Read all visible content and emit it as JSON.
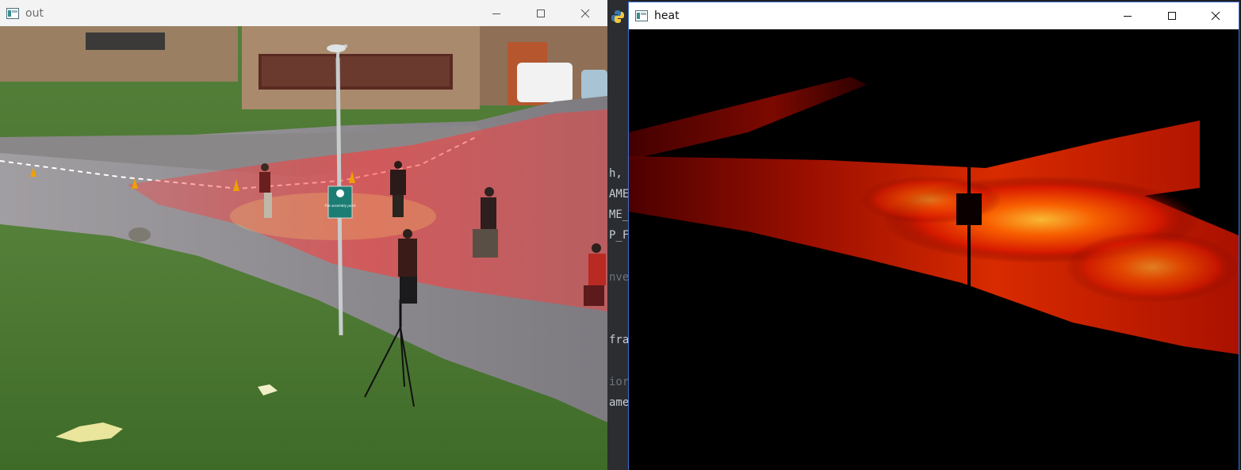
{
  "windows": {
    "out": {
      "title": "out",
      "minimize_icon": "minimize-icon",
      "maximize_icon": "maximize-icon",
      "close_icon": "close-icon"
    },
    "heat": {
      "title": "heat",
      "minimize_icon": "minimize-icon",
      "maximize_icon": "maximize-icon",
      "close_icon": "close-icon"
    }
  },
  "background_editor": {
    "visible_code_fragments": [
      "h,",
      "AME",
      "ME_",
      "P_F",
      "nve",
      "fra",
      "ior",
      "ame"
    ]
  },
  "sign": {
    "text": "Fire assembly point"
  },
  "colors": {
    "titlebar_inactive": "#f3f3f3",
    "titlebar_active": "#ffffff",
    "heatmap_hot": "#ff2a00",
    "heatmap_peak": "#ffd23c",
    "grass": "#4b7a2f",
    "road": "#8e8c8f"
  }
}
